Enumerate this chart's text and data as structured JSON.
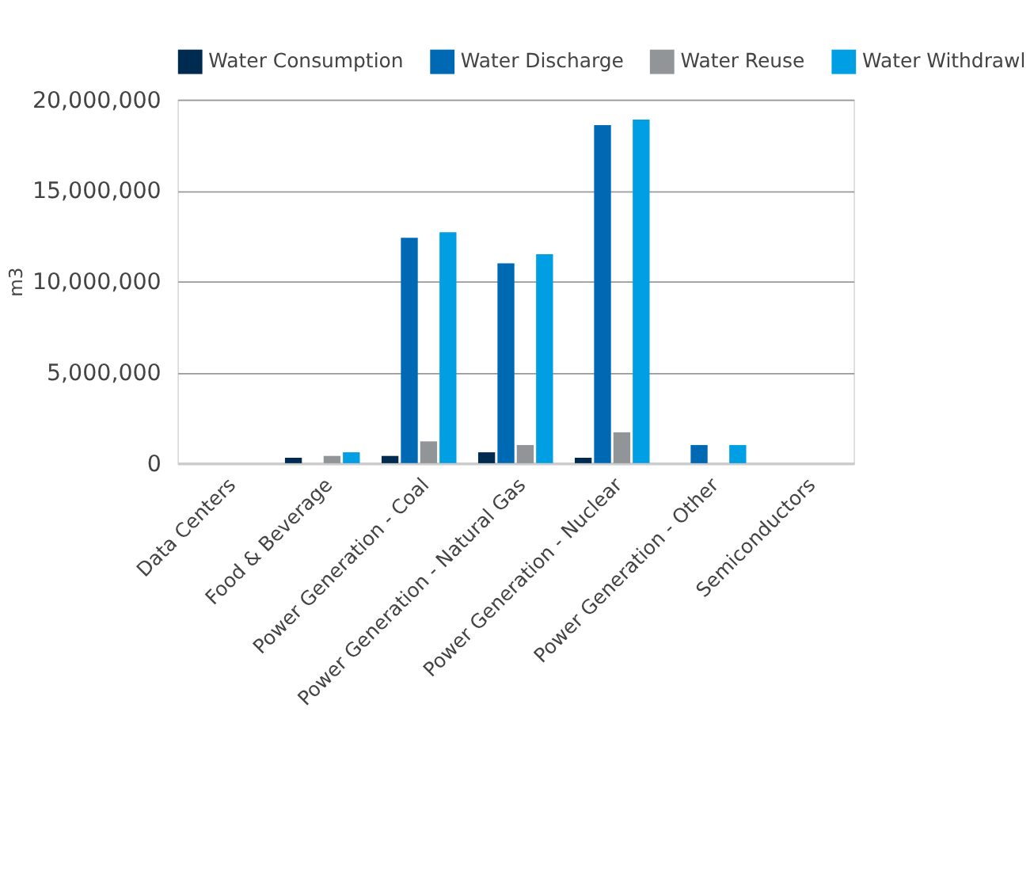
{
  "chart_data": {
    "type": "bar",
    "ylabel": "m3",
    "categories": [
      "Data Centers",
      "Food & Beverage",
      "Power Generation - Coal",
      "Power Generation - Natural Gas",
      "Power Generation - Nuclear",
      "Power Generation - Other",
      "Semiconductors"
    ],
    "series": [
      {
        "name": "Water Consumption",
        "color": "#002b50",
        "values": [
          0,
          300000,
          400000,
          600000,
          300000,
          0,
          0
        ]
      },
      {
        "name": "Water Discharge",
        "color": "#0069b4",
        "values": [
          0,
          0,
          12400000,
          11000000,
          18600000,
          1000000,
          0
        ]
      },
      {
        "name": "Water Reuse",
        "color": "#919598",
        "values": [
          0,
          400000,
          1200000,
          1000000,
          1700000,
          0,
          0
        ]
      },
      {
        "name": "Water Withdrawl",
        "color": "#009fe3",
        "values": [
          0,
          600000,
          12700000,
          11500000,
          18900000,
          1000000,
          0
        ]
      }
    ],
    "ylim": [
      0,
      20000000
    ],
    "yticks": [
      {
        "value": 0,
        "label": "0"
      },
      {
        "value": 5000000,
        "label": "5,000,000"
      },
      {
        "value": 10000000,
        "label": "10,000,000"
      },
      {
        "value": 15000000,
        "label": "15,000,000"
      },
      {
        "value": 20000000,
        "label": "20,000,000"
      }
    ],
    "grid": "y",
    "legend": "top"
  }
}
